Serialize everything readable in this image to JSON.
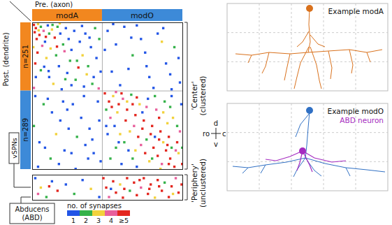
{
  "chart_data": {
    "type": "scatter",
    "x_label": "Pre. (axon)",
    "y_label": "Post. (dendrite)",
    "tick_labels": false,
    "legend": "bottom",
    "xlim": [
      0,
      540
    ],
    "groups": [
      {
        "name": "modA",
        "n": 251,
        "n_label": "n=251",
        "color": "#f2871f"
      },
      {
        "name": "modO",
        "n": 289,
        "n_label": "n=289",
        "color": "#3d8ad8"
      }
    ],
    "annotations": [
      "vSPNs",
      "Abducens (ABD)"
    ],
    "synapse_colors": {
      "title": "no. of synapses",
      "ticks": [
        1,
        2,
        3,
        4,
        {
          "value": 5,
          "label": "≥5"
        }
      ],
      "colors": [
        "#2255e6",
        "#35b24a",
        "#f2d23c",
        "#e8609c",
        "#e3261f"
      ]
    },
    "sections": [
      {
        "label": "'Center' (clustered)",
        "ylim": [
          0,
          540
        ],
        "points": [
          [
            5,
            8,
            5
          ],
          [
            12,
            20,
            5
          ],
          [
            20,
            5,
            3
          ],
          [
            30,
            15,
            2
          ],
          [
            8,
            35,
            5
          ],
          [
            40,
            30,
            4
          ],
          [
            25,
            45,
            5
          ],
          [
            55,
            10,
            1
          ],
          [
            60,
            40,
            2
          ],
          [
            15,
            60,
            5
          ],
          [
            70,
            25,
            3
          ],
          [
            45,
            70,
            1
          ],
          [
            80,
            55,
            5
          ],
          [
            90,
            15,
            2
          ],
          [
            35,
            85,
            4
          ],
          [
            100,
            40,
            1
          ],
          [
            65,
            95,
            3
          ],
          [
            110,
            80,
            2
          ],
          [
            120,
            20,
            1
          ],
          [
            18,
            110,
            5
          ],
          [
            130,
            60,
            1
          ],
          [
            85,
            120,
            2
          ],
          [
            140,
            100,
            1
          ],
          [
            50,
            130,
            3
          ],
          [
            150,
            30,
            1
          ],
          [
            160,
            140,
            2
          ],
          [
            10,
            150,
            5
          ],
          [
            170,
            70,
            1
          ],
          [
            95,
            160,
            1
          ],
          [
            180,
            120,
            3
          ],
          [
            30,
            175,
            2
          ],
          [
            190,
            40,
            1
          ],
          [
            125,
            185,
            1
          ],
          [
            200,
            160,
            2
          ],
          [
            60,
            200,
            1
          ],
          [
            210,
            90,
            1
          ],
          [
            155,
            210,
            2
          ],
          [
            220,
            200,
            1
          ],
          [
            75,
            225,
            3
          ],
          [
            230,
            130,
            1
          ],
          [
            185,
            235,
            1
          ],
          [
            240,
            60,
            2
          ],
          [
            5,
            240,
            4
          ],
          [
            245,
            180,
            1
          ],
          [
            105,
            245,
            1
          ],
          [
            22,
            28,
            3
          ],
          [
            48,
            52,
            5
          ],
          [
            72,
            8,
            2
          ],
          [
            3,
            90,
            3
          ],
          [
            88,
            88,
            5
          ],
          [
            115,
            105,
            4
          ],
          [
            135,
            140,
            2
          ],
          [
            165,
            165,
            5
          ],
          [
            195,
            190,
            3
          ],
          [
            215,
            225,
            2
          ],
          [
            238,
            242,
            4
          ],
          [
            42,
            162,
            1
          ],
          [
            118,
            208,
            2
          ],
          [
            178,
            12,
            1
          ],
          [
            205,
            55,
            1
          ],
          [
            58,
            178,
            1
          ],
          [
            140,
            230,
            1
          ],
          [
            225,
            20,
            2
          ],
          [
            12,
            200,
            1
          ],
          [
            98,
            2,
            3
          ],
          [
            270,
            30,
            1
          ],
          [
            300,
            80,
            1
          ],
          [
            330,
            15,
            1
          ],
          [
            360,
            120,
            2
          ],
          [
            390,
            60,
            1
          ],
          [
            420,
            200,
            1
          ],
          [
            450,
            40,
            1
          ],
          [
            480,
            150,
            1
          ],
          [
            510,
            90,
            2
          ],
          [
            530,
            220,
            1
          ],
          [
            285,
            180,
            1
          ],
          [
            315,
            230,
            1
          ],
          [
            345,
            170,
            1
          ],
          [
            375,
            10,
            1
          ],
          [
            405,
            110,
            1
          ],
          [
            435,
            240,
            1
          ],
          [
            465,
            70,
            3
          ],
          [
            495,
            190,
            1
          ],
          [
            525,
            130,
            1
          ],
          [
            260,
            100,
            1
          ],
          [
            290,
            5,
            1
          ],
          [
            355,
            55,
            1
          ],
          [
            410,
            160,
            1
          ],
          [
            470,
            20,
            1
          ],
          [
            500,
            245,
            1
          ],
          [
            10,
            270,
            1
          ],
          [
            40,
            300,
            2
          ],
          [
            70,
            330,
            1
          ],
          [
            100,
            360,
            1
          ],
          [
            130,
            390,
            1
          ],
          [
            160,
            420,
            2
          ],
          [
            190,
            450,
            1
          ],
          [
            220,
            480,
            1
          ],
          [
            245,
            510,
            1
          ],
          [
            20,
            530,
            1
          ],
          [
            55,
            280,
            1
          ],
          [
            85,
            410,
            3
          ],
          [
            115,
            470,
            1
          ],
          [
            145,
            300,
            1
          ],
          [
            175,
            350,
            1
          ],
          [
            205,
            390,
            1
          ],
          [
            235,
            290,
            1
          ],
          [
            25,
            440,
            1
          ],
          [
            65,
            500,
            2
          ],
          [
            95,
            520,
            1
          ],
          [
            125,
            320,
            1
          ],
          [
            155,
            538,
            1
          ],
          [
            185,
            270,
            1
          ],
          [
            215,
            430,
            1
          ],
          [
            5,
            380,
            2
          ],
          [
            45,
            460,
            1
          ],
          [
            110,
            290,
            1
          ],
          [
            200,
            500,
            1
          ],
          [
            240,
            360,
            1
          ],
          [
            140,
            480,
            1
          ],
          [
            260,
            260,
            5
          ],
          [
            275,
            290,
            5
          ],
          [
            290,
            270,
            3
          ],
          [
            310,
            300,
            5
          ],
          [
            325,
            280,
            4
          ],
          [
            340,
            320,
            5
          ],
          [
            355,
            265,
            2
          ],
          [
            370,
            340,
            5
          ],
          [
            385,
            300,
            3
          ],
          [
            400,
            360,
            5
          ],
          [
            415,
            280,
            1
          ],
          [
            430,
            380,
            5
          ],
          [
            445,
            320,
            4
          ],
          [
            460,
            400,
            5
          ],
          [
            475,
            290,
            2
          ],
          [
            490,
            420,
            5
          ],
          [
            505,
            350,
            3
          ],
          [
            520,
            440,
            5
          ],
          [
            535,
            300,
            1
          ],
          [
            265,
            320,
            2
          ],
          [
            280,
            350,
            4
          ],
          [
            295,
            380,
            1
          ],
          [
            315,
            410,
            3
          ],
          [
            330,
            440,
            2
          ],
          [
            345,
            470,
            1
          ],
          [
            360,
            500,
            2
          ],
          [
            375,
            530,
            1
          ],
          [
            390,
            450,
            4
          ],
          [
            405,
            480,
            5
          ],
          [
            420,
            510,
            3
          ],
          [
            435,
            460,
            5
          ],
          [
            450,
            490,
            5
          ],
          [
            465,
            520,
            4
          ],
          [
            480,
            470,
            5
          ],
          [
            495,
            500,
            5
          ],
          [
            510,
            530,
            5
          ],
          [
            525,
            480,
            3
          ],
          [
            538,
            520,
            5
          ],
          [
            270,
            410,
            1
          ],
          [
            300,
            460,
            2
          ],
          [
            320,
            520,
            1
          ],
          [
            350,
            400,
            3
          ],
          [
            380,
            420,
            5
          ],
          [
            410,
            430,
            2
          ],
          [
            440,
            420,
            1
          ],
          [
            470,
            440,
            3
          ],
          [
            500,
            460,
            2
          ],
          [
            530,
            400,
            4
          ],
          [
            285,
            310,
            5
          ],
          [
            305,
            330,
            3
          ],
          [
            335,
            360,
            5
          ],
          [
            365,
            380,
            4
          ],
          [
            395,
            390,
            5
          ],
          [
            425,
            410,
            5
          ],
          [
            455,
            430,
            5
          ],
          [
            485,
            450,
            5
          ],
          [
            515,
            470,
            4
          ],
          [
            440,
            270,
            2
          ],
          [
            470,
            330,
            3
          ],
          [
            500,
            270,
            1
          ],
          [
            520,
            380,
            2
          ],
          [
            395,
            330,
            1
          ],
          [
            360,
            300,
            5
          ],
          [
            300,
            255,
            4
          ],
          [
            455,
            350,
            5
          ],
          [
            485,
            370,
            3
          ],
          [
            410,
            310,
            4
          ],
          [
            340,
            290,
            3
          ],
          [
            265,
            380,
            1
          ],
          [
            280,
            500,
            2
          ],
          [
            310,
            440,
            1
          ],
          [
            370,
            470,
            3
          ],
          [
            430,
            500,
            2
          ],
          [
            460,
            538,
            3
          ],
          [
            490,
            520,
            5
          ],
          [
            538,
            460,
            2
          ],
          [
            375,
            275,
            5
          ],
          [
            320,
            260,
            5
          ],
          [
            495,
            310,
            2
          ]
        ]
      },
      {
        "label": "'Periphery' (unclustered)",
        "ylim": [
          0,
          40
        ],
        "points": [
          [
            10,
            5,
            1
          ],
          [
            30,
            20,
            3
          ],
          [
            50,
            35,
            2
          ],
          [
            70,
            10,
            1
          ],
          [
            90,
            25,
            5
          ],
          [
            120,
            15,
            1
          ],
          [
            150,
            30,
            2
          ],
          [
            180,
            8,
            1
          ],
          [
            210,
            22,
            3
          ],
          [
            240,
            35,
            1
          ],
          [
            20,
            30,
            4
          ],
          [
            60,
            18,
            5
          ],
          [
            255,
            5,
            5
          ],
          [
            265,
            20,
            5
          ],
          [
            275,
            35,
            4
          ],
          [
            290,
            10,
            5
          ],
          [
            300,
            28,
            5
          ],
          [
            315,
            15,
            3
          ],
          [
            325,
            36,
            5
          ],
          [
            340,
            5,
            5
          ],
          [
            350,
            25,
            2
          ],
          [
            365,
            12,
            5
          ],
          [
            375,
            32,
            5
          ],
          [
            390,
            20,
            4
          ],
          [
            400,
            5,
            5
          ],
          [
            415,
            30,
            5
          ],
          [
            425,
            15,
            5
          ],
          [
            440,
            36,
            3
          ],
          [
            450,
            8,
            5
          ],
          [
            465,
            25,
            5
          ],
          [
            475,
            12,
            2
          ],
          [
            490,
            35,
            5
          ],
          [
            500,
            18,
            5
          ],
          [
            515,
            5,
            4
          ],
          [
            525,
            28,
            5
          ],
          [
            536,
            15,
            5
          ],
          [
            282,
            22,
            1
          ],
          [
            330,
            22,
            5
          ],
          [
            385,
            8,
            5
          ],
          [
            455,
            18,
            5
          ],
          [
            505,
            30,
            3
          ],
          [
            420,
            22,
            5
          ]
        ]
      }
    ]
  },
  "neurons": [
    {
      "title": "Example modA",
      "color": "#d9711c"
    },
    {
      "title": "Example modO",
      "color": "#3070c4",
      "cell": {
        "label": "ABD neuron",
        "color": "#a52bc0"
      }
    }
  ],
  "compass": {
    "up": "d",
    "down": "v",
    "left": "ro",
    "right": "c"
  }
}
